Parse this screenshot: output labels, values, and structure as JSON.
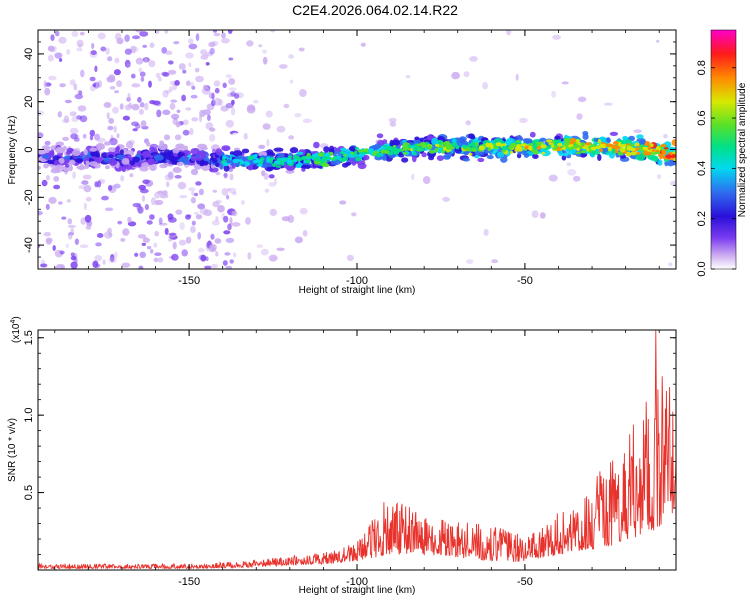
{
  "title": "C2E4.2026.064.02.14.R22",
  "colors": {
    "accent": "#e8322c",
    "colormap": [
      "#ffffff",
      "#c9a8f0",
      "#7a3cf0",
      "#2a10d8",
      "#2f6cf0",
      "#00d8f0",
      "#00e08a",
      "#56e02a",
      "#d8e800",
      "#ff8a00",
      "#ff1a1a",
      "#ff00c8"
    ]
  },
  "chart_data": [
    {
      "type": "heatmap",
      "title": "C2E4.2026.064.02.14.R22",
      "xlabel": "Height of straight line (km)",
      "ylabel": "Frequency (Hz)",
      "xlim": [
        -195,
        -5
      ],
      "ylim": [
        -50,
        50
      ],
      "xticks": [
        -150,
        -100,
        -50
      ],
      "xtick_labels": [
        "-150",
        "-100",
        "-50"
      ],
      "yticks": [
        40,
        20,
        0,
        -20,
        -40
      ],
      "ytick_labels": [
        "40",
        "20",
        "0",
        "-20",
        "-40"
      ],
      "band_center": [
        {
          "x": -195,
          "y": -3.5
        },
        {
          "x": -150,
          "y": -3.5
        },
        {
          "x": -130,
          "y": -5
        },
        {
          "x": -110,
          "y": -4
        },
        {
          "x": -95,
          "y": -1
        },
        {
          "x": -80,
          "y": 1
        },
        {
          "x": -60,
          "y": 1
        },
        {
          "x": -40,
          "y": 1.5
        },
        {
          "x": -20,
          "y": 1
        },
        {
          "x": -5,
          "y": -2
        }
      ],
      "colorbar": {
        "label": "Normalized spectral amplitude",
        "range": [
          0,
          0.95
        ],
        "ticks": [
          0.0,
          0.2,
          0.4,
          0.6,
          0.8
        ],
        "tick_labels": [
          "0.0",
          "0.2",
          "0.4",
          "0.6",
          "0.8"
        ]
      }
    },
    {
      "type": "line",
      "xlabel": "Height of straight line (km)",
      "ylabel": "SNR (10 * v/v)",
      "scale_label": "(x10",
      "scale_exponent": "4",
      "scale_suffix": ")",
      "xlim": [
        -195,
        -5
      ],
      "ylim": [
        0,
        1.55
      ],
      "xticks": [
        -150,
        -100,
        -50
      ],
      "xtick_labels": [
        "-150",
        "-100",
        "-50"
      ],
      "yticks": [
        0.5,
        1.0,
        1.5
      ],
      "ytick_labels": [
        "0.5",
        "1.0",
        "1.5"
      ],
      "series": [
        {
          "name": "SNR",
          "envelope": [
            {
              "x": -195,
              "base": 0.01,
              "amp": 0.03
            },
            {
              "x": -150,
              "base": 0.01,
              "amp": 0.03
            },
            {
              "x": -135,
              "base": 0.015,
              "amp": 0.04
            },
            {
              "x": -120,
              "base": 0.03,
              "amp": 0.06
            },
            {
              "x": -108,
              "base": 0.04,
              "amp": 0.08
            },
            {
              "x": -100,
              "base": 0.06,
              "amp": 0.12
            },
            {
              "x": -95,
              "base": 0.08,
              "amp": 0.3
            },
            {
              "x": -90,
              "base": 0.1,
              "amp": 0.38
            },
            {
              "x": -80,
              "base": 0.1,
              "amp": 0.25
            },
            {
              "x": -70,
              "base": 0.08,
              "amp": 0.25
            },
            {
              "x": -60,
              "base": 0.06,
              "amp": 0.22
            },
            {
              "x": -52,
              "base": 0.05,
              "amp": 0.2
            },
            {
              "x": -45,
              "base": 0.08,
              "amp": 0.2
            },
            {
              "x": -35,
              "base": 0.12,
              "amp": 0.35
            },
            {
              "x": -25,
              "base": 0.15,
              "amp": 0.55
            },
            {
              "x": -18,
              "base": 0.2,
              "amp": 0.75
            },
            {
              "x": -12,
              "base": 0.25,
              "amp": 0.9
            },
            {
              "x": -8,
              "base": 0.3,
              "amp": 1.1
            },
            {
              "x": -5,
              "base": 0.4,
              "amp": 0.5
            }
          ],
          "peak": {
            "x": -11,
            "y": 1.55
          },
          "point_count": 1200,
          "seed": 20260364
        }
      ]
    }
  ]
}
